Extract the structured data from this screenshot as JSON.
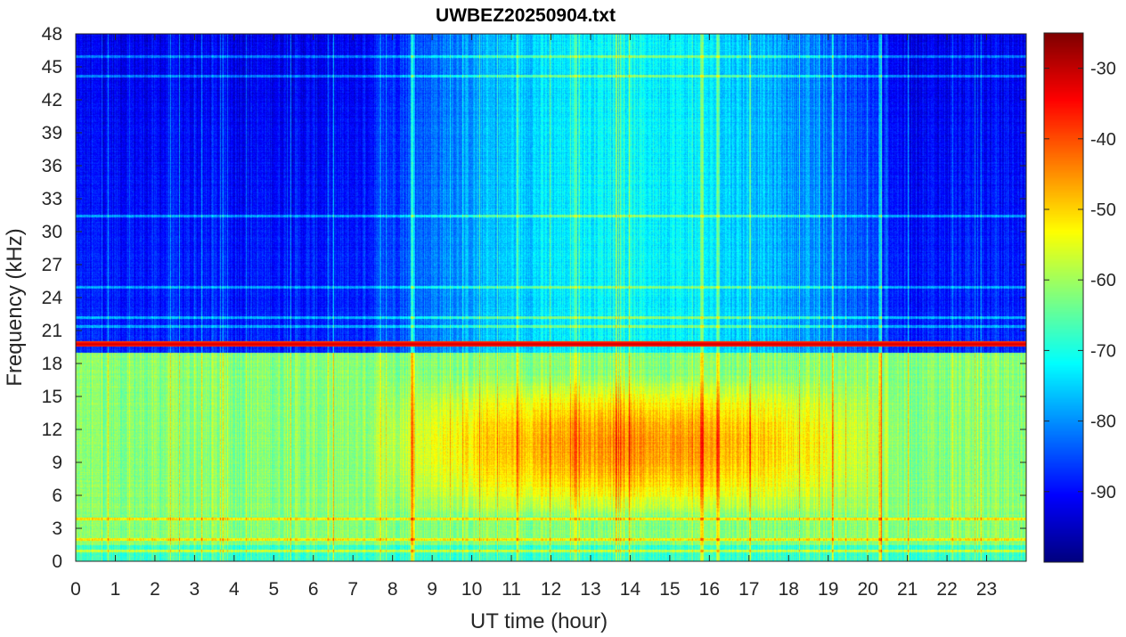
{
  "chart_data": {
    "type": "heatmap",
    "title": "UWBEZ20250904.txt",
    "xlabel": "UT time (hour)",
    "ylabel": "Frequency (kHz)",
    "xlim": [
      0,
      24
    ],
    "ylim": [
      0,
      48
    ],
    "x_ticks": [
      0,
      1,
      2,
      3,
      4,
      5,
      6,
      7,
      8,
      9,
      10,
      11,
      12,
      13,
      14,
      15,
      16,
      17,
      18,
      19,
      20,
      21,
      22,
      23
    ],
    "y_ticks": [
      0,
      3,
      6,
      9,
      12,
      15,
      18,
      21,
      24,
      27,
      30,
      33,
      36,
      39,
      42,
      45,
      48
    ],
    "colorbar": {
      "colormap": "jet",
      "range": [
        -100,
        -25
      ],
      "ticks": [
        -30,
        -40,
        -50,
        -60,
        -70,
        -80,
        -90
      ],
      "tick_labels": [
        "-30",
        "-40",
        "-50",
        "-60",
        "-70",
        "-80",
        "-90"
      ]
    },
    "features": {
      "background_level_low_freq": -62,
      "background_level_high_freq_night": -88,
      "background_level_high_freq_day": -72,
      "strong_transmitter_line": {
        "frequency_khz": 19.8,
        "level": -30
      },
      "daytime_enhancement": {
        "start_hour": 7,
        "end_hour": 21,
        "freq_range_khz": [
          4,
          17
        ],
        "peak_level": -45
      },
      "narrowband_lines_khz": [
        1.0,
        2.0,
        3.9,
        21.4,
        22.2,
        25.0,
        31.5,
        44.2,
        46.0
      ],
      "strong_vertical_lines_hours": [
        8.5,
        12.6,
        15.8,
        16.2,
        20.3
      ]
    }
  }
}
